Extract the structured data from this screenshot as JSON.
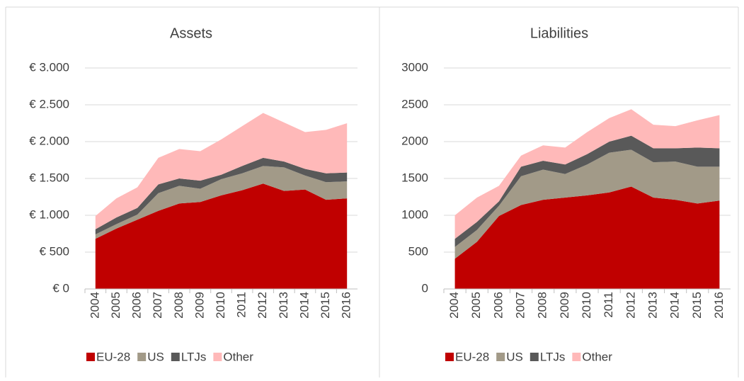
{
  "chart_data": [
    {
      "type": "area",
      "stacked": true,
      "title": "Assets",
      "categories": [
        "2004",
        "2005",
        "2006",
        "2007",
        "2008",
        "2009",
        "2010",
        "2011",
        "2012",
        "2013",
        "2014",
        "2015",
        "2016"
      ],
      "series": [
        {
          "name": "EU-28",
          "color": "#c00000",
          "values": [
            680,
            820,
            940,
            1060,
            1160,
            1180,
            1270,
            1340,
            1430,
            1330,
            1350,
            1210,
            1230
          ]
        },
        {
          "name": "US",
          "color": "#a29a88",
          "values": [
            60,
            60,
            70,
            240,
            240,
            180,
            220,
            230,
            240,
            320,
            190,
            240,
            230
          ]
        },
        {
          "name": "LTJs",
          "color": "#595959",
          "values": [
            70,
            90,
            90,
            120,
            100,
            110,
            60,
            100,
            110,
            80,
            90,
            120,
            120
          ]
        },
        {
          "name": "Other",
          "color": "#ffb9b9",
          "values": [
            180,
            260,
            280,
            360,
            400,
            400,
            480,
            540,
            610,
            530,
            500,
            590,
            670
          ]
        }
      ],
      "ylim": [
        0,
        3000
      ],
      "yticks": [
        {
          "value": 0,
          "label": "€ 0"
        },
        {
          "value": 500,
          "label": "€ 500"
        },
        {
          "value": 1000,
          "label": "€ 1.000"
        },
        {
          "value": 1500,
          "label": "€ 1.500"
        },
        {
          "value": 2000,
          "label": "€ 2.000"
        },
        {
          "value": 2500,
          "label": "€ 2.500"
        },
        {
          "value": 3000,
          "label": "€ 3.000"
        }
      ],
      "grid": true,
      "legend": "bottom"
    },
    {
      "type": "area",
      "stacked": true,
      "title": "Liabilities",
      "categories": [
        "2004",
        "2005",
        "2006",
        "2007",
        "2008",
        "2009",
        "2010",
        "2011",
        "2012",
        "2013",
        "2014",
        "2015",
        "2016"
      ],
      "series": [
        {
          "name": "EU-28",
          "color": "#c00000",
          "values": [
            410,
            640,
            990,
            1140,
            1210,
            1240,
            1270,
            1310,
            1390,
            1240,
            1210,
            1160,
            1200
          ]
        },
        {
          "name": "US",
          "color": "#a29a88",
          "values": [
            160,
            160,
            140,
            390,
            410,
            320,
            420,
            540,
            500,
            480,
            520,
            500,
            460
          ]
        },
        {
          "name": "LTJs",
          "color": "#595959",
          "values": [
            110,
            110,
            60,
            130,
            120,
            130,
            140,
            150,
            190,
            190,
            180,
            260,
            250
          ]
        },
        {
          "name": "Other",
          "color": "#ffb9b9",
          "values": [
            320,
            330,
            210,
            150,
            210,
            230,
            300,
            320,
            360,
            320,
            300,
            370,
            450
          ]
        }
      ],
      "ylim": [
        0,
        3000
      ],
      "yticks": [
        0,
        500,
        1000,
        1500,
        2000,
        2500,
        3000
      ],
      "grid": true,
      "legend": "bottom"
    }
  ]
}
